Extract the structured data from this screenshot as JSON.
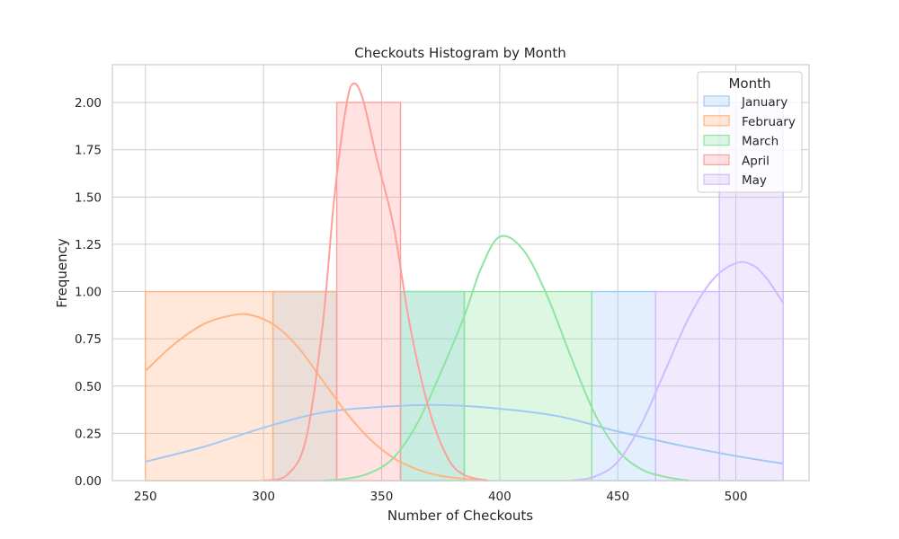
{
  "chart_data": {
    "type": "histogram",
    "title": "Checkouts Histogram by Month",
    "xlabel": "Number of Checkouts",
    "ylabel": "Frequency",
    "xlim": [
      236,
      531
    ],
    "ylim": [
      0,
      2.2
    ],
    "xticks": [
      250,
      300,
      350,
      400,
      450,
      500
    ],
    "yticks": [
      "0.00",
      "0.25",
      "0.50",
      "0.75",
      "1.00",
      "1.25",
      "1.50",
      "1.75",
      "2.00"
    ],
    "grid": true,
    "legend": {
      "title": "Month",
      "placement": "top-right"
    },
    "series": [
      {
        "name": "January",
        "color": "#a1c9f4",
        "bins": [
          {
            "x0": 304,
            "x1": 331,
            "count": 1
          },
          {
            "x0": 358,
            "x1": 385,
            "count": 1
          },
          {
            "x0": 439,
            "x1": 466,
            "count": 1
          }
        ],
        "kde": [
          [
            250,
            0.1
          ],
          [
            275,
            0.18
          ],
          [
            300,
            0.28
          ],
          [
            325,
            0.36
          ],
          [
            350,
            0.39
          ],
          [
            375,
            0.4
          ],
          [
            400,
            0.38
          ],
          [
            425,
            0.34
          ],
          [
            450,
            0.26
          ],
          [
            475,
            0.19
          ],
          [
            500,
            0.13
          ],
          [
            520,
            0.09
          ]
        ]
      },
      {
        "name": "February",
        "color": "#ffb482",
        "bins": [
          {
            "x0": 250,
            "x1": 304,
            "count": 1
          },
          {
            "x0": 304,
            "x1": 331,
            "count": 1
          }
        ],
        "kde": [
          [
            250,
            0.58
          ],
          [
            262,
            0.72
          ],
          [
            275,
            0.83
          ],
          [
            287,
            0.875
          ],
          [
            295,
            0.875
          ],
          [
            305,
            0.82
          ],
          [
            315,
            0.7
          ],
          [
            325,
            0.53
          ],
          [
            335,
            0.36
          ],
          [
            345,
            0.22
          ],
          [
            355,
            0.12
          ],
          [
            365,
            0.06
          ],
          [
            375,
            0.025
          ],
          [
            385,
            0.01
          ],
          [
            395,
            0.0
          ]
        ]
      },
      {
        "name": "March",
        "color": "#8de5a1",
        "bins": [
          {
            "x0": 358,
            "x1": 385,
            "count": 1
          },
          {
            "x0": 385,
            "x1": 439,
            "count": 1
          }
        ],
        "kde": [
          [
            325,
            0.0
          ],
          [
            335,
            0.01
          ],
          [
            345,
            0.04
          ],
          [
            355,
            0.12
          ],
          [
            365,
            0.3
          ],
          [
            375,
            0.57
          ],
          [
            385,
            0.87
          ],
          [
            392,
            1.12
          ],
          [
            400,
            1.29
          ],
          [
            410,
            1.22
          ],
          [
            420,
            0.98
          ],
          [
            430,
            0.66
          ],
          [
            440,
            0.36
          ],
          [
            450,
            0.16
          ],
          [
            460,
            0.06
          ],
          [
            470,
            0.02
          ],
          [
            480,
            0.0
          ]
        ]
      },
      {
        "name": "April",
        "color": "#ff9f9b",
        "bins": [
          {
            "x0": 331,
            "x1": 358,
            "count": 2
          }
        ],
        "kde": [
          [
            300,
            0.0
          ],
          [
            310,
            0.03
          ],
          [
            318,
            0.22
          ],
          [
            325,
            0.82
          ],
          [
            330,
            1.5
          ],
          [
            335,
            1.98
          ],
          [
            338,
            2.1
          ],
          [
            342,
            2.02
          ],
          [
            348,
            1.7
          ],
          [
            355,
            1.35
          ],
          [
            362,
            0.82
          ],
          [
            370,
            0.38
          ],
          [
            378,
            0.12
          ],
          [
            385,
            0.03
          ],
          [
            395,
            0.0
          ]
        ]
      },
      {
        "name": "May",
        "color": "#d0bbff",
        "bins": [
          {
            "x0": 466,
            "x1": 493,
            "count": 1
          },
          {
            "x0": 493,
            "x1": 520,
            "count": 2
          }
        ],
        "kde": [
          [
            430,
            0.0
          ],
          [
            440,
            0.02
          ],
          [
            450,
            0.1
          ],
          [
            460,
            0.3
          ],
          [
            470,
            0.58
          ],
          [
            480,
            0.86
          ],
          [
            490,
            1.06
          ],
          [
            500,
            1.15
          ],
          [
            507,
            1.14
          ],
          [
            513,
            1.07
          ],
          [
            520,
            0.94
          ]
        ]
      }
    ]
  }
}
